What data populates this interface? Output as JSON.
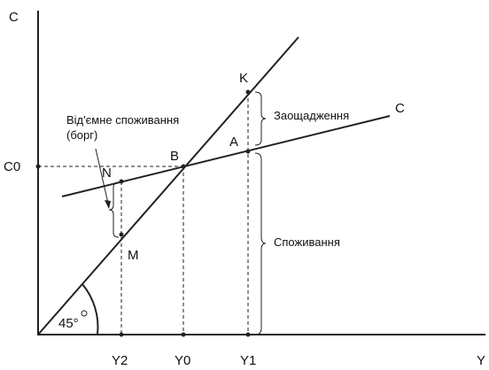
{
  "axes": {
    "y_label": "C",
    "x_label": "Y",
    "c0": "C0",
    "y2": "Y2",
    "y0": "Y0",
    "y1": "Y1"
  },
  "points": {
    "k": "K",
    "a": "A",
    "b": "B",
    "n": "N",
    "m": "M"
  },
  "line_label": "C",
  "annotations": {
    "negative_consumption": [
      "Від'ємне споживання",
      "(борг)"
    ],
    "savings": "Заощадження",
    "consumption": "Споживання",
    "angle": "45°"
  }
}
